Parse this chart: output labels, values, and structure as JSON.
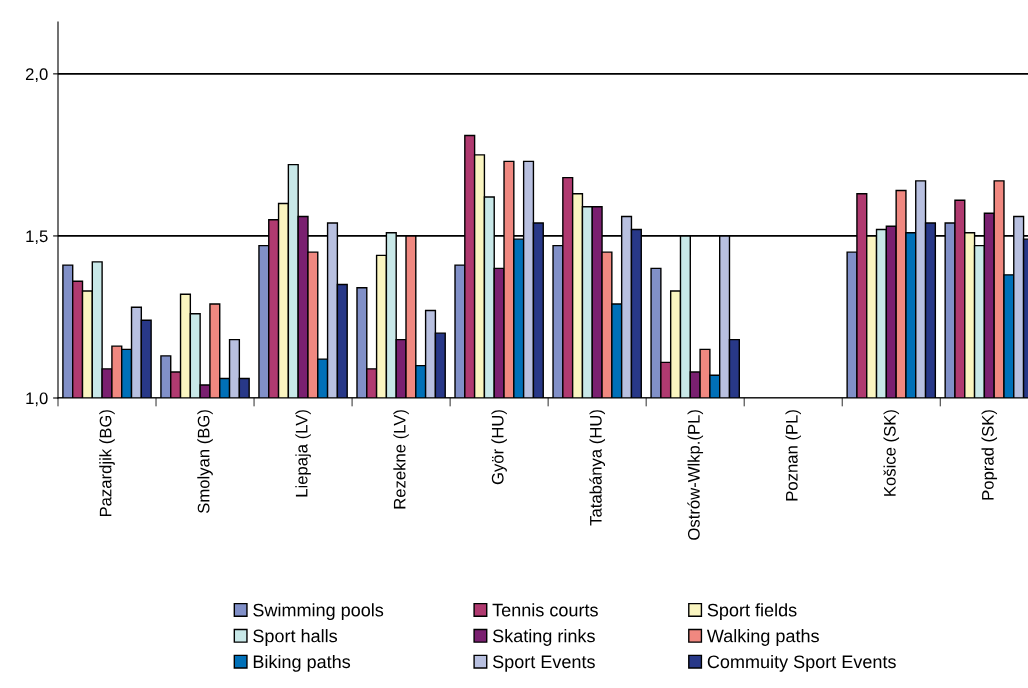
{
  "chart_data": {
    "type": "bar",
    "categories": [
      "Pazardjik (BG)",
      "Smolyan (BG)",
      "Liepaja (LV)",
      "Rezekne (LV)",
      "Györ (HU)",
      "Tatabánya (HU)",
      "Ostrów-Wlkp.(PL)",
      "Poznan (PL)",
      "Košice (SK)",
      "Poprad (SK)"
    ],
    "series": [
      {
        "name": "Swimming pools",
        "color": "#8190c8",
        "values": [
          1.41,
          1.13,
          1.47,
          1.34,
          1.41,
          1.47,
          1.4,
          null,
          1.45,
          1.54
        ]
      },
      {
        "name": "Tennis courts",
        "color": "#b03a70",
        "values": [
          1.36,
          1.08,
          1.55,
          1.09,
          1.81,
          1.68,
          1.11,
          null,
          1.63,
          1.61
        ]
      },
      {
        "name": "Sport fields",
        "color": "#faf5c0",
        "values": [
          1.33,
          1.32,
          1.6,
          1.44,
          1.75,
          1.63,
          1.33,
          null,
          1.5,
          1.51
        ]
      },
      {
        "name": "Sport halls",
        "color": "#c8e8e8",
        "values": [
          1.42,
          1.26,
          1.72,
          1.51,
          1.62,
          1.59,
          1.5,
          null,
          1.52,
          1.47
        ]
      },
      {
        "name": "Skating rinks",
        "color": "#7a2070",
        "values": [
          1.09,
          1.04,
          1.56,
          1.18,
          1.4,
          1.59,
          1.08,
          null,
          1.53,
          1.57
        ]
      },
      {
        "name": "Walking paths",
        "color": "#f08880",
        "values": [
          1.16,
          1.29,
          1.45,
          1.5,
          1.73,
          1.45,
          1.15,
          null,
          1.64,
          1.67
        ]
      },
      {
        "name": "Biking paths",
        "color": "#0070b8",
        "values": [
          1.15,
          1.06,
          1.12,
          1.1,
          1.49,
          1.29,
          1.07,
          null,
          1.51,
          1.38
        ]
      },
      {
        "name": "Sport Events",
        "color": "#b8c0e0",
        "values": [
          1.28,
          1.18,
          1.54,
          1.27,
          1.73,
          1.56,
          1.5,
          null,
          1.67,
          1.56
        ]
      },
      {
        "name": "Commuity Sport Events",
        "color": "#283888",
        "values": [
          1.24,
          1.06,
          1.35,
          1.2,
          1.54,
          1.52,
          1.18,
          null,
          1.54,
          1.49
        ]
      }
    ],
    "ylim": [
      1.0,
      2.16
    ],
    "yticks": [
      {
        "value": 1.0,
        "label": "1,0"
      },
      {
        "value": 1.5,
        "label": "1,5"
      },
      {
        "value": 2.0,
        "label": "2,0"
      }
    ],
    "grid": "y",
    "legend": "bottom"
  }
}
